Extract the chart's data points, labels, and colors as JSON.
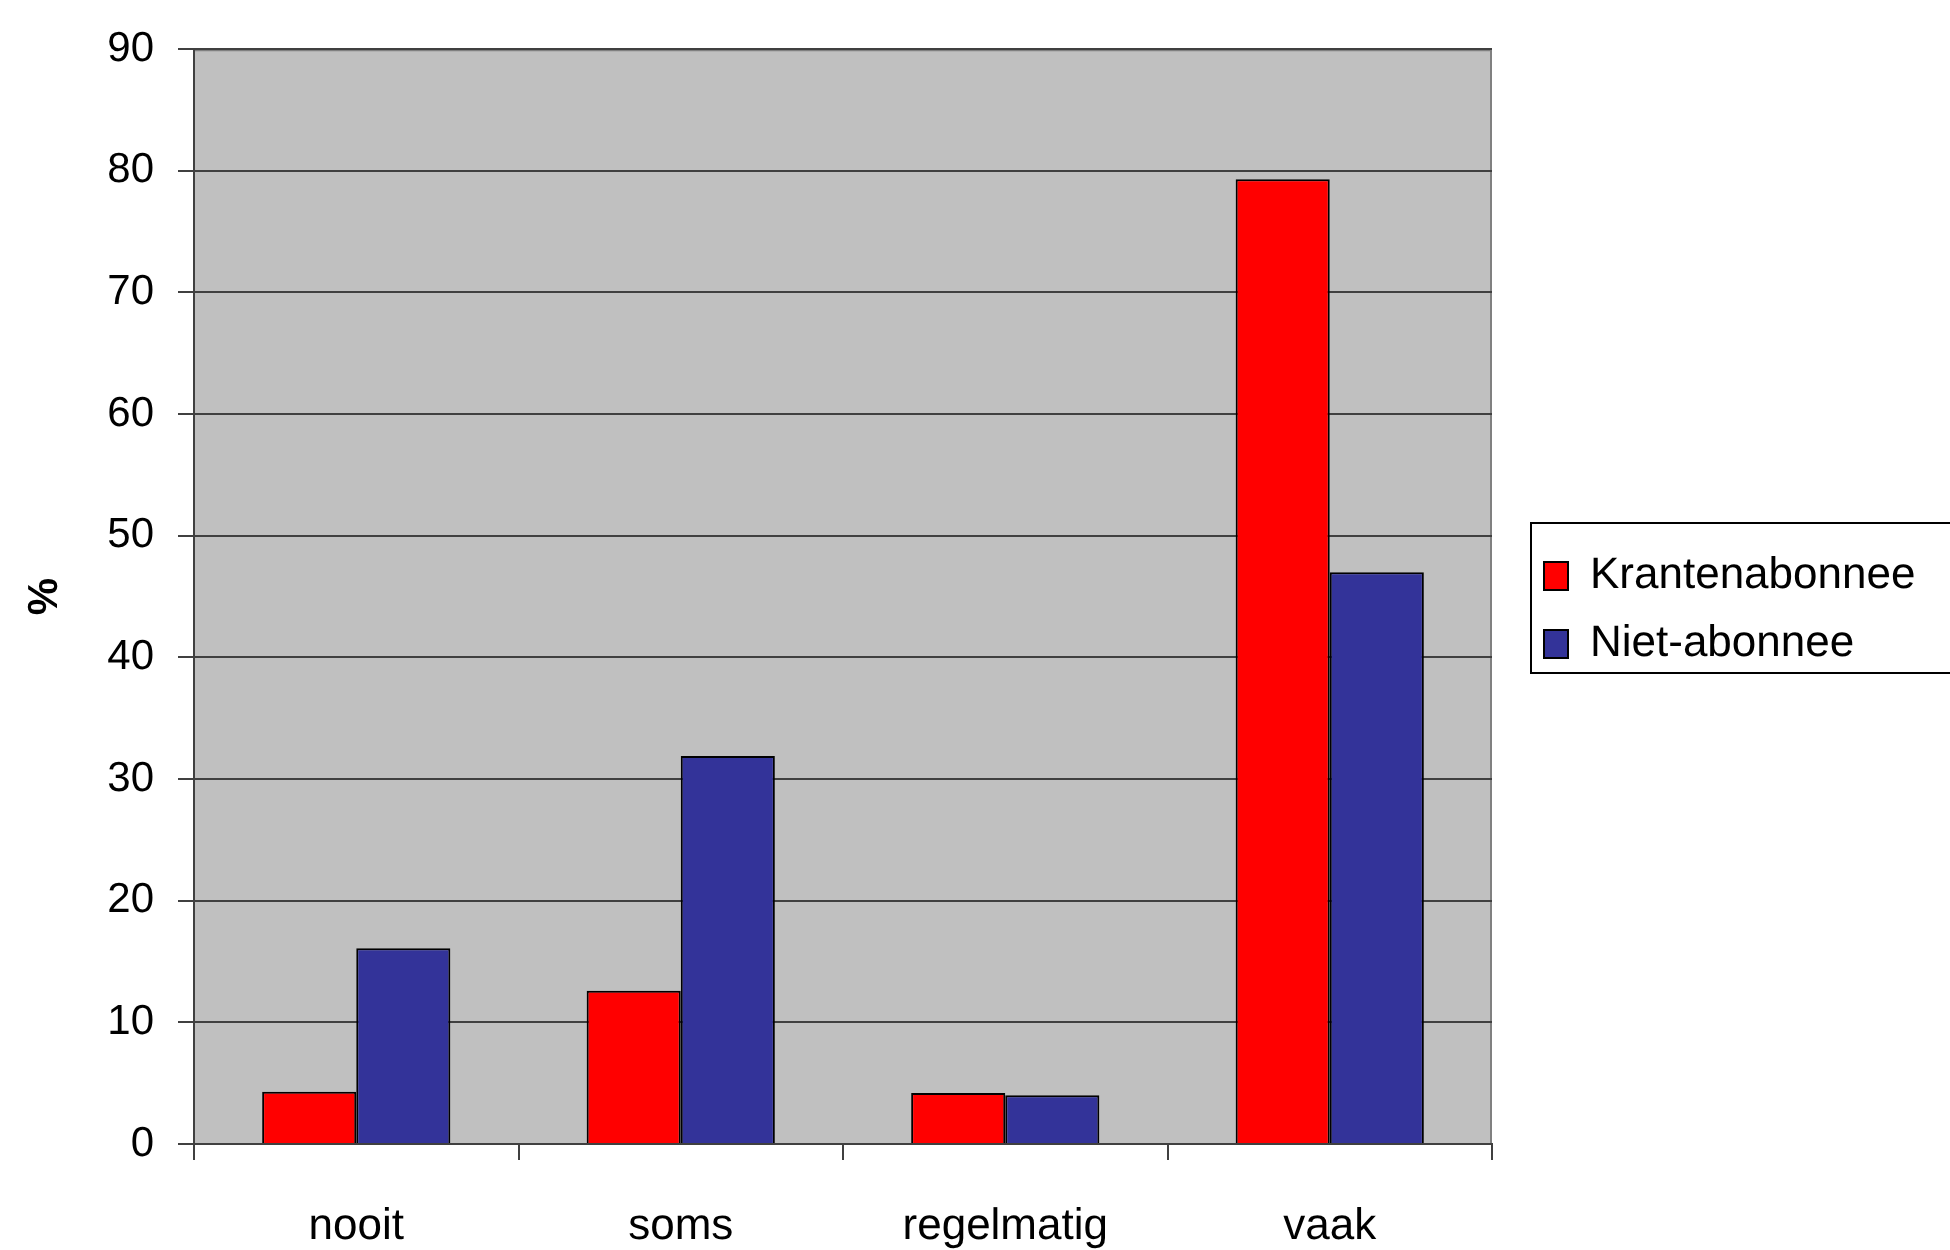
{
  "chart_data": {
    "type": "bar",
    "ylabel": "%",
    "categories": [
      "nooit",
      "soms",
      "regelmatig",
      "vaak"
    ],
    "series": [
      {
        "name": "Krantenabonnee",
        "color": "#ff0000",
        "values": [
          4.3,
          12.6,
          4.2,
          79.3
        ]
      },
      {
        "name": "Niet-abonnee",
        "color": "#333399",
        "values": [
          16.1,
          31.9,
          4.0,
          47.0
        ]
      }
    ],
    "ylim": [
      0,
      90
    ],
    "yticks": [
      0,
      10,
      20,
      30,
      40,
      50,
      60,
      70,
      80,
      90
    ],
    "grid": "y",
    "legend": "right"
  }
}
